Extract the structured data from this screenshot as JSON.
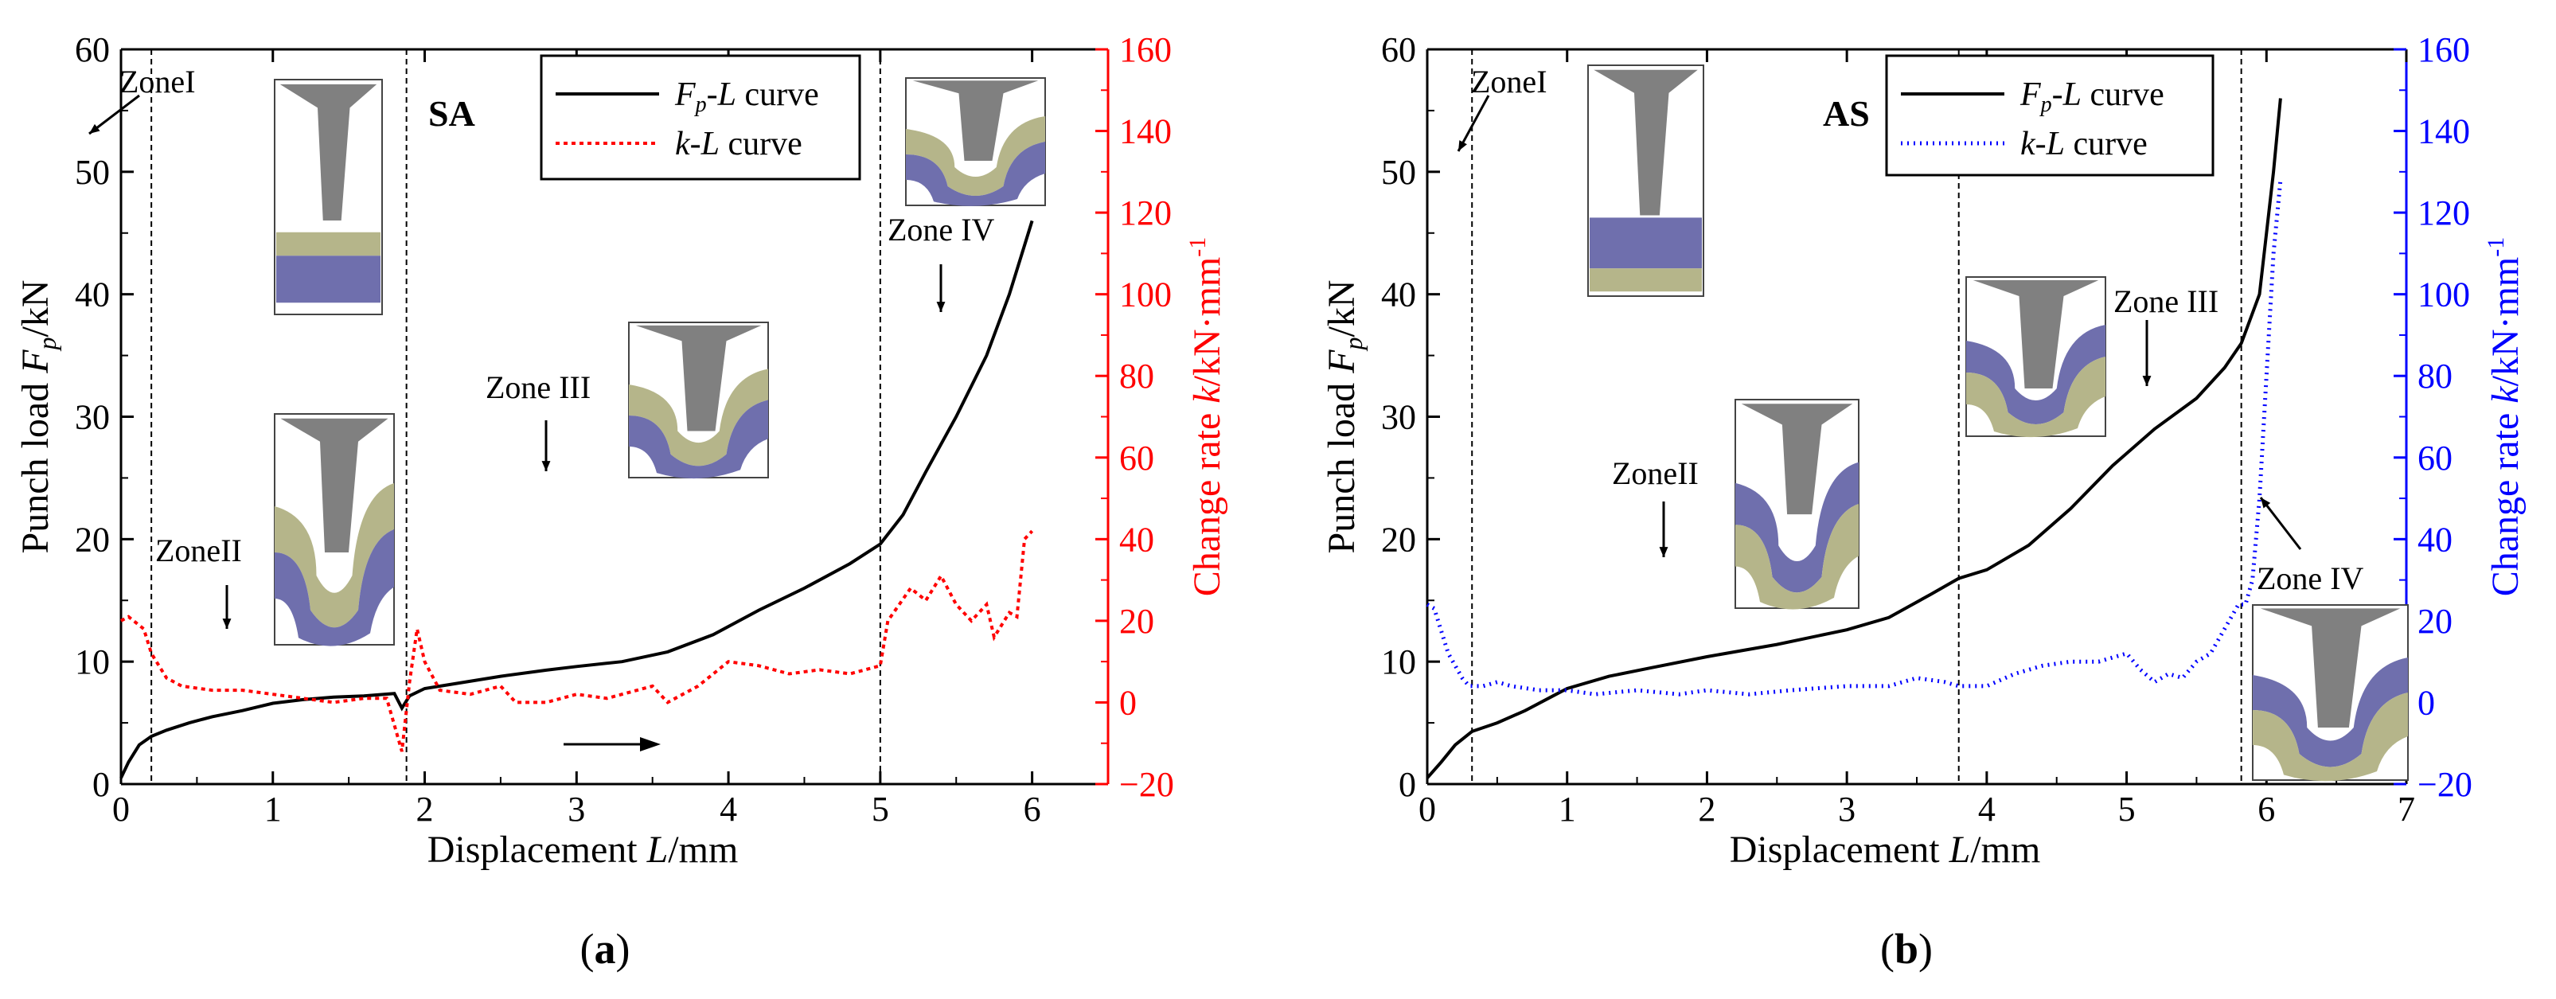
{
  "colors": {
    "axis": "#000000",
    "fp_curve": "#000000",
    "k_curve_a": "#ff0000",
    "k_curve_b": "#0000ff",
    "punch": "#808080",
    "sheet_top": "#b5b58a",
    "sheet_bottom": "#6f6fad"
  },
  "chart_data": [
    {
      "type": "line",
      "panel_label": "a",
      "title": "SA",
      "xlabel": "Displacement L/mm",
      "ylabel_left": "Punch load Fp/kN",
      "ylabel_right": "Change rate k/kN·mm-1",
      "labels": {
        "x_main": "Displacement ",
        "x_var": "L",
        "x_unit": "/mm",
        "yl_main": "Punch load ",
        "yl_var": "F",
        "yl_sub": "p",
        "yl_unit": "/kN",
        "yr_main": "Change rate ",
        "yr_var": "k",
        "yr_unit": "/kN·mm",
        "yr_sup": "-1",
        "panel_open": "(",
        "panel_close": ")"
      },
      "xlim": [
        0,
        6.5
      ],
      "ylim_left": [
        0,
        60
      ],
      "ylim_right": [
        -20,
        160
      ],
      "x_ticks": [
        0,
        1,
        2,
        3,
        4,
        5,
        6
      ],
      "y_left_ticks": [
        0,
        10,
        20,
        30,
        40,
        50,
        60
      ],
      "y_right_ticks": [
        -20,
        0,
        20,
        40,
        60,
        80,
        100,
        120,
        140,
        160
      ],
      "legend": [
        {
          "var": "F",
          "sub": "p",
          "sep": "-",
          "var2": "L",
          "rest": " curve",
          "series": "fp"
        },
        {
          "var": "k",
          "sub": "",
          "sep": "-",
          "var2": "L",
          "rest": " curve",
          "series": "k"
        }
      ],
      "zone_boundaries": [
        0.2,
        1.88,
        5.0
      ],
      "zone_labels": [
        "ZoneI",
        "ZoneII",
        "Zone III",
        "Zone IV"
      ],
      "series": [
        {
          "name": "Fp-L curve",
          "axis": "left",
          "points": [
            [
              0,
              0.5
            ],
            [
              0.05,
              1.8
            ],
            [
              0.12,
              3.2
            ],
            [
              0.2,
              3.9
            ],
            [
              0.3,
              4.4
            ],
            [
              0.45,
              5.0
            ],
            [
              0.6,
              5.5
            ],
            [
              0.8,
              6.0
            ],
            [
              1.0,
              6.6
            ],
            [
              1.2,
              6.9
            ],
            [
              1.4,
              7.1
            ],
            [
              1.6,
              7.2
            ],
            [
              1.8,
              7.4
            ],
            [
              1.85,
              6.2
            ],
            [
              1.9,
              7.2
            ],
            [
              2.0,
              7.8
            ],
            [
              2.2,
              8.2
            ],
            [
              2.5,
              8.8
            ],
            [
              2.8,
              9.3
            ],
            [
              3.0,
              9.6
            ],
            [
              3.3,
              10.0
            ],
            [
              3.6,
              10.8
            ],
            [
              3.9,
              12.2
            ],
            [
              4.2,
              14.2
            ],
            [
              4.5,
              16.0
            ],
            [
              4.8,
              18.0
            ],
            [
              5.0,
              19.6
            ],
            [
              5.15,
              22.0
            ],
            [
              5.3,
              25.5
            ],
            [
              5.5,
              30.0
            ],
            [
              5.7,
              35.0
            ],
            [
              5.85,
              40.0
            ],
            [
              5.95,
              44.0
            ],
            [
              6.0,
              46.0
            ]
          ]
        },
        {
          "name": "k-L curve",
          "axis": "right",
          "points": [
            [
              0,
              20
            ],
            [
              0.05,
              21
            ],
            [
              0.15,
              18
            ],
            [
              0.2,
              12
            ],
            [
              0.3,
              6
            ],
            [
              0.4,
              4
            ],
            [
              0.6,
              3
            ],
            [
              0.8,
              3
            ],
            [
              1.0,
              2
            ],
            [
              1.2,
              1
            ],
            [
              1.4,
              0
            ],
            [
              1.6,
              1
            ],
            [
              1.75,
              1
            ],
            [
              1.85,
              -12
            ],
            [
              1.9,
              5
            ],
            [
              1.95,
              18
            ],
            [
              2.0,
              10
            ],
            [
              2.1,
              3
            ],
            [
              2.3,
              2
            ],
            [
              2.5,
              4
            ],
            [
              2.6,
              0
            ],
            [
              2.8,
              0
            ],
            [
              3.0,
              2
            ],
            [
              3.2,
              1
            ],
            [
              3.5,
              4
            ],
            [
              3.6,
              0
            ],
            [
              3.8,
              4
            ],
            [
              4.0,
              10
            ],
            [
              4.2,
              9
            ],
            [
              4.4,
              7
            ],
            [
              4.6,
              8
            ],
            [
              4.8,
              7
            ],
            [
              5.0,
              9
            ],
            [
              5.05,
              20
            ],
            [
              5.2,
              28
            ],
            [
              5.3,
              25
            ],
            [
              5.4,
              31
            ],
            [
              5.5,
              24
            ],
            [
              5.6,
              20
            ],
            [
              5.7,
              24
            ],
            [
              5.75,
              16
            ],
            [
              5.85,
              22
            ],
            [
              5.9,
              21
            ],
            [
              5.95,
              40
            ],
            [
              6.0,
              42
            ]
          ]
        }
      ]
    },
    {
      "type": "line",
      "panel_label": "b",
      "title": "AS",
      "xlabel": "Displacement L/mm",
      "ylabel_left": "Punch load Fp/kN",
      "ylabel_right": "Change rate k/kN·mm-1",
      "labels": {
        "x_main": "Displacement ",
        "x_var": "L",
        "x_unit": "/mm",
        "yl_main": "Punch load ",
        "yl_var": "F",
        "yl_sub": "p",
        "yl_unit": "/kN",
        "yr_main": "Change rate ",
        "yr_var": "k",
        "yr_unit": "/kN·mm",
        "yr_sup": "-1",
        "panel_open": "(",
        "panel_close": ")"
      },
      "xlim": [
        0,
        7
      ],
      "ylim_left": [
        0,
        60
      ],
      "ylim_right": [
        -20,
        160
      ],
      "x_ticks": [
        0,
        1,
        2,
        3,
        4,
        5,
        6,
        7
      ],
      "y_left_ticks": [
        0,
        10,
        20,
        30,
        40,
        50,
        60
      ],
      "y_right_ticks": [
        -20,
        0,
        20,
        40,
        60,
        80,
        100,
        120,
        140,
        160
      ],
      "legend": [
        {
          "var": "F",
          "sub": "p",
          "sep": "-",
          "var2": "L",
          "rest": " curve",
          "series": "fp"
        },
        {
          "var": "k",
          "sub": "",
          "sep": "-",
          "var2": "L",
          "rest": " curve",
          "series": "k"
        }
      ],
      "zone_boundaries": [
        0.32,
        3.8,
        5.82
      ],
      "zone_labels": [
        "ZoneI",
        "ZoneII",
        "Zone III",
        "Zone IV"
      ],
      "series": [
        {
          "name": "Fp-L curve",
          "axis": "left",
          "points": [
            [
              0,
              0.5
            ],
            [
              0.1,
              1.8
            ],
            [
              0.2,
              3.2
            ],
            [
              0.32,
              4.3
            ],
            [
              0.5,
              5.0
            ],
            [
              0.7,
              6.0
            ],
            [
              0.9,
              7.2
            ],
            [
              1.0,
              7.8
            ],
            [
              1.3,
              8.8
            ],
            [
              1.6,
              9.5
            ],
            [
              2.0,
              10.4
            ],
            [
              2.5,
              11.4
            ],
            [
              3.0,
              12.6
            ],
            [
              3.3,
              13.6
            ],
            [
              3.6,
              15.5
            ],
            [
              3.8,
              16.8
            ],
            [
              4.0,
              17.5
            ],
            [
              4.3,
              19.5
            ],
            [
              4.6,
              22.5
            ],
            [
              4.9,
              26.0
            ],
            [
              5.2,
              29.0
            ],
            [
              5.5,
              31.5
            ],
            [
              5.7,
              34.0
            ],
            [
              5.82,
              36.0
            ],
            [
              5.95,
              40.0
            ],
            [
              6.0,
              45.0
            ],
            [
              6.05,
              50.0
            ],
            [
              6.1,
              56.0
            ]
          ]
        },
        {
          "name": "k-L curve",
          "axis": "right",
          "points": [
            [
              0,
              24
            ],
            [
              0.05,
              23
            ],
            [
              0.15,
              12
            ],
            [
              0.25,
              6
            ],
            [
              0.3,
              4
            ],
            [
              0.4,
              4
            ],
            [
              0.5,
              5
            ],
            [
              0.6,
              4
            ],
            [
              0.8,
              3
            ],
            [
              1.0,
              3
            ],
            [
              1.2,
              2
            ],
            [
              1.5,
              3
            ],
            [
              1.8,
              2
            ],
            [
              2.0,
              3
            ],
            [
              2.3,
              2
            ],
            [
              2.6,
              3
            ],
            [
              3.0,
              4
            ],
            [
              3.3,
              4
            ],
            [
              3.5,
              6
            ],
            [
              3.7,
              5
            ],
            [
              3.8,
              4
            ],
            [
              4.0,
              4
            ],
            [
              4.2,
              7
            ],
            [
              4.4,
              9
            ],
            [
              4.6,
              10
            ],
            [
              4.8,
              10
            ],
            [
              5.0,
              12
            ],
            [
              5.1,
              8
            ],
            [
              5.2,
              5
            ],
            [
              5.3,
              7
            ],
            [
              5.4,
              6
            ],
            [
              5.5,
              10
            ],
            [
              5.6,
              12
            ],
            [
              5.7,
              18
            ],
            [
              5.8,
              24
            ],
            [
              5.85,
              24
            ],
            [
              5.9,
              30
            ],
            [
              5.95,
              50
            ],
            [
              6.0,
              80
            ],
            [
              6.05,
              110
            ],
            [
              6.1,
              128
            ]
          ]
        }
      ]
    }
  ]
}
